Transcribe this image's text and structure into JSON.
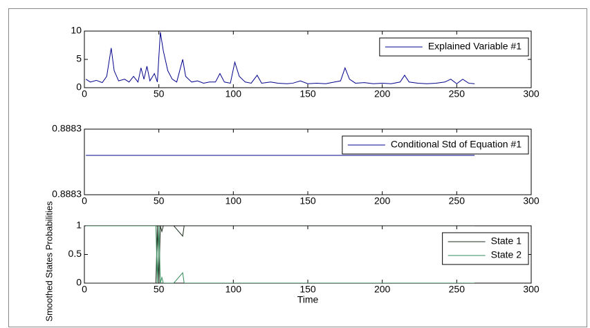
{
  "chart_data": [
    {
      "type": "line",
      "xlim": [
        0,
        300
      ],
      "xticks": [
        0,
        50,
        100,
        150,
        200,
        250,
        300
      ],
      "ylim": [
        0,
        10
      ],
      "yticks": [
        0,
        5,
        10
      ],
      "legend": "upper right",
      "x": [
        1,
        4,
        8,
        12,
        15,
        18,
        20,
        23,
        27,
        30,
        33,
        36,
        38,
        40,
        42,
        44,
        47,
        49,
        51,
        53,
        56,
        59,
        62,
        66,
        68,
        72,
        76,
        80,
        84,
        88,
        91,
        94,
        98,
        101,
        104,
        108,
        112,
        116,
        119,
        125,
        130,
        136,
        140,
        145,
        150,
        156,
        162,
        168,
        172,
        175,
        178,
        182,
        188,
        194,
        200,
        206,
        212,
        215,
        218,
        224,
        230,
        236,
        242,
        246,
        250,
        254,
        258,
        262
      ],
      "series": [
        {
          "name": "Explained Variable #1",
          "color": "#00008b",
          "values": [
            1.5,
            1.0,
            1.3,
            0.9,
            2.0,
            7.0,
            3.0,
            1.2,
            1.5,
            1.0,
            2.0,
            1.0,
            3.5,
            1.5,
            3.8,
            1.2,
            2.5,
            1.0,
            9.8,
            6.5,
            3.0,
            1.5,
            1.0,
            5.0,
            2.0,
            1.0,
            1.2,
            0.8,
            1.0,
            1.0,
            2.5,
            1.0,
            0.8,
            4.5,
            2.0,
            1.0,
            0.8,
            2.2,
            0.8,
            1.0,
            0.8,
            0.7,
            0.8,
            1.2,
            0.7,
            0.8,
            0.7,
            1.0,
            1.2,
            3.5,
            1.5,
            0.8,
            0.9,
            0.7,
            0.8,
            0.7,
            1.0,
            2.2,
            1.0,
            0.8,
            0.7,
            0.8,
            1.0,
            1.5,
            0.7,
            1.5,
            0.8,
            0.7
          ]
        }
      ]
    },
    {
      "type": "line",
      "xlim": [
        0,
        300
      ],
      "xticks": [
        0,
        50,
        100,
        150,
        200,
        250,
        300
      ],
      "ylim": [
        0.8883,
        0.88834
      ],
      "yticks": [
        {
          "value": 0.8883,
          "label": "0.8883"
        },
        {
          "value": 0.88834,
          "label": "0.8883"
        }
      ],
      "legend": "upper right",
      "x": [
        1,
        262
      ],
      "series": [
        {
          "name": "Conditional Std of Equation #1",
          "color": "#00008b",
          "values": [
            0.888324,
            0.888324
          ]
        }
      ]
    },
    {
      "type": "line",
      "xlim": [
        0,
        300
      ],
      "xticks": [
        0,
        50,
        100,
        150,
        200,
        250,
        300
      ],
      "ylim": [
        0,
        1
      ],
      "yticks": [
        0,
        0.5,
        1
      ],
      "legend": "upper right",
      "xlabel": "Time",
      "ylabel": "Smoothed States Probabilities",
      "x": [
        1,
        48,
        49,
        50,
        51,
        52,
        53,
        60,
        66,
        67,
        262
      ],
      "series": [
        {
          "name": "State 1",
          "color": "#1c2b1c",
          "values": [
            0,
            0,
            1,
            0,
            1,
            0.9,
            1,
            1,
            0.82,
            1,
            1
          ]
        },
        {
          "name": "State 2",
          "color": "#2e8b57",
          "values": [
            1,
            1,
            0,
            1,
            0,
            0.1,
            0,
            0,
            0.18,
            0,
            0
          ]
        }
      ]
    }
  ]
}
